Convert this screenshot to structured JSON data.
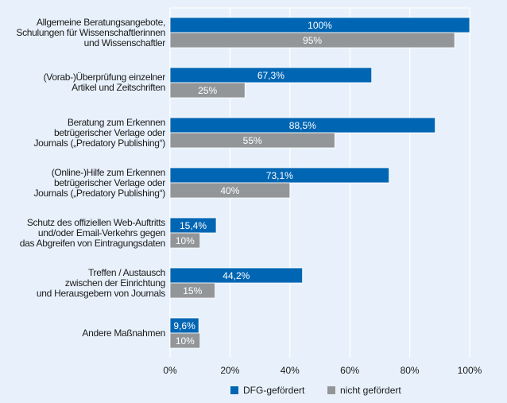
{
  "chart_data": {
    "type": "bar",
    "orientation": "horizontal",
    "title": "",
    "xlabel": "",
    "ylabel": "",
    "xlim": [
      0,
      100
    ],
    "x_ticks": [
      "0%",
      "20%",
      "40%",
      "60%",
      "80%",
      "100%"
    ],
    "x_tick_values": [
      0,
      20,
      40,
      60,
      80,
      100
    ],
    "grid": true,
    "legend_position": "bottom",
    "categories": [
      [
        "Allgemeine Beratungsangebote,",
        "Schulungen für Wissenschaftlerinnen",
        "und Wissenschaftler"
      ],
      [
        "(Vorab-)Überprüfung einzelner",
        "Artikel und Zeitschriften"
      ],
      [
        "Beratung zum Erkennen",
        "betrügerischer Verlage oder",
        "Journals („Predatory Publishing“)"
      ],
      [
        "(Online-)Hilfe zum Erkennen",
        "betrügerischer Verlage oder",
        "Journals („Predatory Publishing“)"
      ],
      [
        "Schutz des offiziellen Web-Auftritts",
        "und/oder Email-Verkehrs gegen",
        "das Abgreifen von Eintragungsdaten"
      ],
      [
        "Treffen / Austausch",
        "zwischen der Einrichtung",
        "und Herausgebern von Journals"
      ],
      [
        "Andere Maßnahmen"
      ]
    ],
    "series": [
      {
        "name": "DFG-gefördert",
        "color": "#0066b3",
        "values": [
          100,
          67.3,
          88.5,
          73.1,
          15.4,
          44.2,
          9.6
        ],
        "labels": [
          "100%",
          "67,3%",
          "88,5%",
          "73,1%",
          "15,4%",
          "44,2%",
          "9,6%"
        ]
      },
      {
        "name": "nicht gefördert",
        "color": "#939699",
        "values": [
          95,
          25,
          55,
          40,
          10,
          15,
          10
        ],
        "labels": [
          "95%",
          "25%",
          "55%",
          "40%",
          "10%",
          "15%",
          "10%"
        ]
      }
    ]
  },
  "colors": {
    "background": "#e8f1fb",
    "grid": "#ffffff",
    "label_text": "#1a1a1a",
    "bar_text": "#ffffff"
  }
}
